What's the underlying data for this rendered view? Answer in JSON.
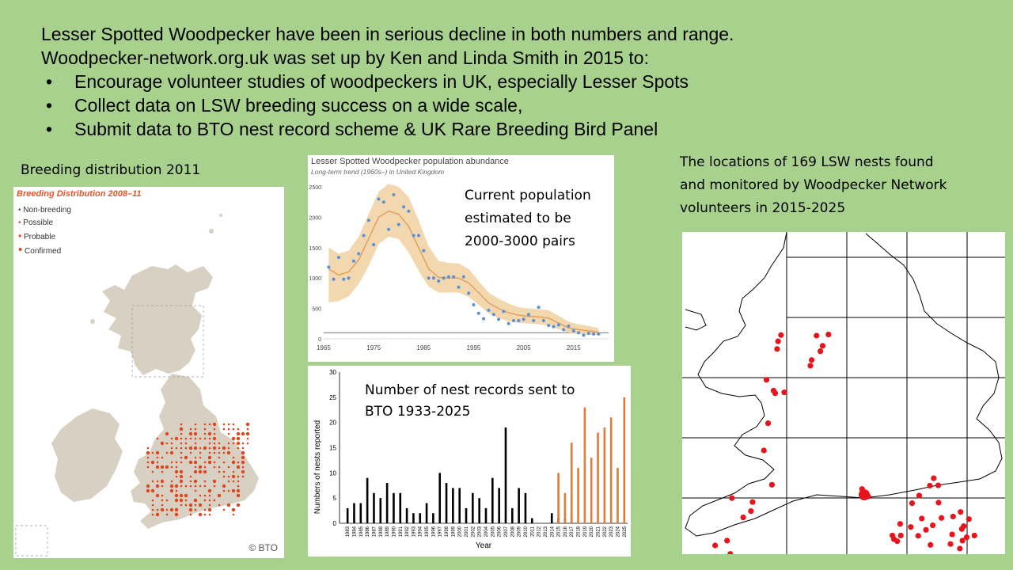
{
  "intro": {
    "line1": "Lesser Spotted Woodpecker have been in serious decline in both numbers and range.",
    "line2": "Woodpecker-network.org.uk was set up by Ken and Linda Smith in 2015 to:",
    "bullets": [
      "Encourage volunteer studies of woodpeckers in UK, especially Lesser Spots",
      "Collect data on LSW breeding success on a wide scale,",
      "Submit data to BTO nest record scheme & UK Rare Breeding Bird Panel"
    ],
    "bullet_glyph": "•"
  },
  "distribution": {
    "caption": "Breeding distribution 2011",
    "map_title": "Breeding Distribution",
    "map_title_years": "2008–11",
    "legend": [
      "Non-breeding",
      "Possible",
      "Probable",
      "Confirmed"
    ],
    "credit": "© BTO",
    "colors": {
      "title": "#e8542a",
      "land": "#d9d0c4",
      "dots": "#e0451c"
    }
  },
  "abundance": {
    "title": "Lesser Spotted Woodpecker population abundance",
    "subtitle": "Long-term trend (1960s–) in United Kingdom",
    "annotation_lines": [
      "Current population",
      "estimated to be",
      "2000-3000 pairs"
    ]
  },
  "nests_chart": {
    "annotation_lines": [
      "Number of nest records sent to",
      "BTO 1933-2025"
    ]
  },
  "locations": {
    "caption_lines": [
      "The locations of 169 LSW nests found",
      "and monitored by Woodpecker Network",
      "volunteers in 2015-2025"
    ],
    "dot_color": "#e8141c"
  },
  "chart_data": [
    {
      "type": "line",
      "title": "Lesser Spotted Woodpecker population abundance",
      "subtitle": "Long-term trend (1960s–) in United Kingdom",
      "xlabel": "",
      "ylabel": "",
      "xlim": [
        1965,
        2022
      ],
      "ylim": [
        0,
        2500
      ],
      "x_ticks": [
        "1965",
        "1975",
        "1985",
        "1995",
        "2005",
        "2015"
      ],
      "y_ticks": [
        "0",
        "500",
        "1000",
        "1500",
        "2000",
        "2500"
      ],
      "series": [
        {
          "role": "trend",
          "x": [
            1966,
            1968,
            1970,
            1972,
            1974,
            1976,
            1978,
            1980,
            1982,
            1984,
            1986,
            1988,
            1990,
            1992,
            1994,
            1996,
            1998,
            2000,
            2002,
            2004,
            2006,
            2008,
            2010,
            2012,
            2014,
            2016,
            2018,
            2020
          ],
          "y": [
            1150,
            1050,
            1100,
            1300,
            1650,
            2000,
            2100,
            2050,
            1850,
            1500,
            1150,
            1010,
            1000,
            1000,
            920,
            760,
            590,
            500,
            430,
            390,
            370,
            360,
            340,
            260,
            180,
            150,
            130,
            110
          ]
        },
        {
          "role": "upper",
          "x": [
            1966,
            1968,
            1970,
            1972,
            1974,
            1976,
            1978,
            1980,
            1982,
            1984,
            1986,
            1988,
            1990,
            1992,
            1994,
            1996,
            1998,
            2000,
            2002,
            2004,
            2006,
            2008,
            2010,
            2012,
            2014,
            2016,
            2018,
            2020
          ],
          "y": [
            1500,
            1400,
            1450,
            1680,
            2050,
            2420,
            2550,
            2500,
            2330,
            1950,
            1520,
            1280,
            1250,
            1240,
            1150,
            950,
            760,
            660,
            580,
            520,
            500,
            490,
            470,
            380,
            280,
            240,
            210,
            180
          ]
        },
        {
          "role": "lower",
          "x": [
            1966,
            1968,
            1970,
            1972,
            1974,
            1976,
            1978,
            1980,
            1982,
            1984,
            1986,
            1988,
            1990,
            1992,
            1994,
            1996,
            1998,
            2000,
            2002,
            2004,
            2006,
            2008,
            2010,
            2012,
            2014,
            2016,
            2018,
            2020
          ],
          "y": [
            600,
            620,
            700,
            900,
            1200,
            1560,
            1680,
            1640,
            1420,
            1120,
            860,
            760,
            760,
            760,
            690,
            560,
            420,
            340,
            290,
            260,
            250,
            240,
            220,
            160,
            100,
            80,
            70,
            60
          ]
        },
        {
          "role": "points",
          "x": [
            1966,
            1967,
            1968,
            1969,
            1970,
            1971,
            1972,
            1973,
            1974,
            1975,
            1976,
            1977,
            1978,
            1979,
            1980,
            1981,
            1982,
            1983,
            1984,
            1985,
            1986,
            1987,
            1988,
            1989,
            1990,
            1991,
            1992,
            1993,
            1994,
            1995,
            1996,
            1997,
            1998,
            1999,
            2000,
            2001,
            2002,
            2003,
            2004,
            2005,
            2006,
            2007,
            2008,
            2009,
            2010,
            2011,
            2012,
            2013,
            2014,
            2015,
            2016,
            2017,
            2018,
            2019,
            2020
          ],
          "y": [
            1180,
            980,
            1340,
            980,
            1000,
            1280,
            1400,
            1700,
            1950,
            1550,
            2300,
            2250,
            1800,
            2370,
            1880,
            2170,
            2100,
            1700,
            1700,
            1450,
            1000,
            1000,
            950,
            1000,
            1020,
            1020,
            850,
            1020,
            750,
            560,
            420,
            330,
            470,
            400,
            320,
            450,
            250,
            300,
            300,
            320,
            400,
            300,
            520,
            300,
            220,
            200,
            230,
            150,
            210,
            130,
            100,
            60,
            90,
            80,
            80
          ]
        }
      ]
    },
    {
      "type": "bar",
      "title": "",
      "xlabel": "Year",
      "ylabel": "Numbers of nests reported",
      "ylim": [
        0,
        30
      ],
      "y_ticks": [
        "0",
        "5",
        "10",
        "15",
        "20",
        "25",
        "30"
      ],
      "categories": [
        "1983",
        "1984",
        "1985",
        "1986",
        "1987",
        "1988",
        "1989",
        "1990",
        "1991",
        "1992",
        "1993",
        "1994",
        "1995",
        "1996",
        "1997",
        "1998",
        "1999",
        "2000",
        "2001",
        "2002",
        "2003",
        "2004",
        "2005",
        "2006",
        "2007",
        "2008",
        "2009",
        "2010",
        "2011",
        "2012",
        "2013",
        "2014",
        "2015",
        "2016",
        "2017",
        "2018",
        "2019",
        "2020",
        "2021",
        "2022",
        "2023",
        "2024",
        "2025"
      ],
      "series": [
        {
          "color": "#000000",
          "values": [
            3,
            4,
            4,
            9,
            6,
            5,
            8,
            6,
            6,
            3,
            2,
            2,
            4,
            2,
            10,
            8,
            7,
            7,
            3,
            6,
            5,
            3,
            9,
            7,
            19,
            3,
            7,
            6,
            1,
            0,
            0,
            2,
            1,
            1,
            2,
            0,
            0,
            0,
            0,
            0,
            0,
            0,
            0
          ]
        },
        {
          "color": "#e07b39",
          "values": [
            0,
            0,
            0,
            0,
            0,
            0,
            0,
            0,
            0,
            0,
            0,
            0,
            0,
            0,
            0,
            0,
            0,
            0,
            0,
            0,
            0,
            0,
            0,
            0,
            0,
            0,
            0,
            0,
            0,
            0,
            0,
            0,
            10,
            6,
            16,
            11,
            23,
            13,
            18,
            19,
            21,
            11,
            25
          ]
        }
      ]
    },
    {
      "type": "scatter",
      "title": "The locations of 169 LSW nests found and monitored by Woodpecker Network volunteers in 2015-2025",
      "xlabel": "",
      "ylabel": "",
      "grid": true,
      "series": [
        {
          "name": "",
          "x": [
            0.297,
            0.294,
            0.306,
            0.416,
            0.397,
            0.435,
            0.428,
            0.453,
            0.401,
            0.261,
            0.283,
            0.288,
            0.316,
            0.266,
            0.253,
            0.278,
            0.154,
            0.189,
            0.218,
            0.213,
            0.102,
            0.105,
            0.127,
            0.164,
            0.139,
            0.149,
            0.557,
            0.576,
            0.675,
            0.651,
            0.656,
            0.666,
            0.677,
            0.708,
            0.742,
            0.776,
            0.794,
            0.862,
            0.888,
            0.881,
            0.905,
            0.872,
            0.868,
            0.866,
            0.755,
            0.769,
            0.712,
            0.731,
            0.779,
            0.767,
            0.734,
            0.803,
            0.836,
            0.839,
            0.86,
            0.831,
            0.793
          ],
          "y": [
            0.435,
            0.462,
            0.413,
            0.415,
            0.521,
            0.451,
            0.47,
            0.411,
            0.501,
            0.571,
            0.609,
            0.618,
            0.615,
            0.724,
            0.82,
            0.941,
            0.988,
            1.056,
            1.002,
            1.034,
            1.155,
            1.195,
            1.214,
            1.219,
            1.138,
            1.185,
            0.956,
            0.982,
            1.079,
            1.12,
            1.133,
            1.14,
            1.12,
            1.09,
            1.06,
            1.084,
            1.004,
            1.037,
            1.062,
            1.126,
            1.12,
            1.087,
            1.138,
            1.097,
            1.1,
            1.153,
            1.006,
            1.121,
            0.918,
            0.944,
            0.979,
            1.058,
            1.116,
            1.053,
            1.166,
            1.15,
            0.943
          ]
        }
      ]
    }
  ]
}
